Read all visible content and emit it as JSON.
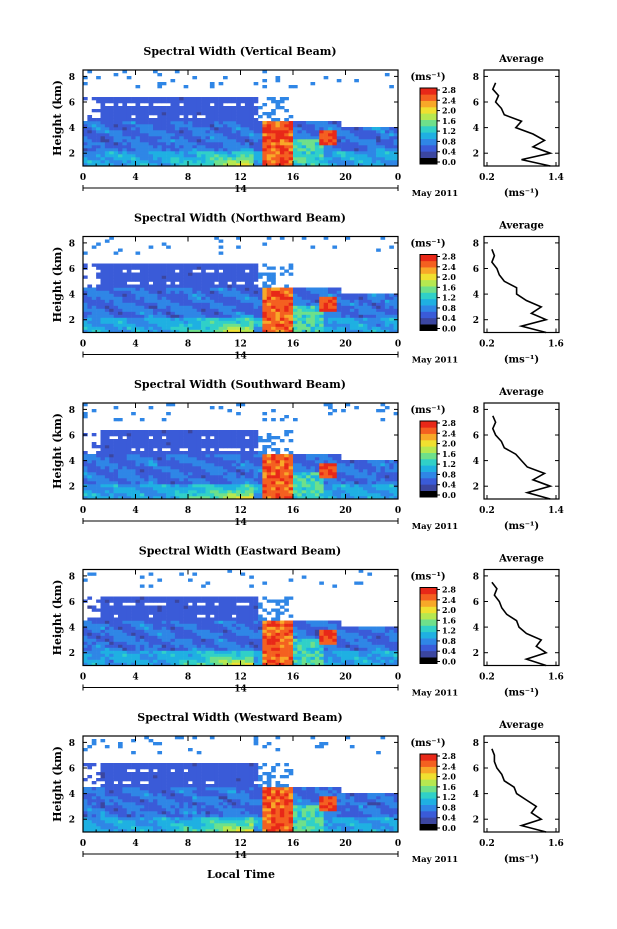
{
  "figure": {
    "xlabel": "Local Time",
    "date_label": "May 2011",
    "day_label": "14",
    "colorbar_unit": "(ms⁻¹)",
    "avg_title": "Average",
    "avg_unit": "(ms⁻¹)",
    "ylabel": "Height (km)"
  },
  "colors": {
    "scale": [
      "#000000",
      "#3b46a0",
      "#3a5bd8",
      "#2f86e6",
      "#1fb0e2",
      "#30d0c8",
      "#6ee08a",
      "#b6e850",
      "#f0e030",
      "#f8a828",
      "#f46020",
      "#e82818"
    ]
  },
  "chart_data": [
    {
      "type": "heatmap",
      "title": "Spectral Width (Vertical Beam)",
      "x_ticks": [
        "0",
        "4",
        "8",
        "12",
        "16",
        "20",
        "0"
      ],
      "y_ticks": [
        "2",
        "4",
        "6",
        "8"
      ],
      "colorbar_ticks": [
        "0.0",
        "0.4",
        "0.8",
        "1.2",
        "1.6",
        "2.0",
        "2.4",
        "2.8"
      ],
      "avg": {
        "x_ticks": [
          "0.2",
          "1.4"
        ],
        "y_ticks": [
          "2",
          "4",
          "6",
          "8"
        ],
        "xlim": [
          0.2,
          1.4
        ],
        "heights": [
          1,
          1.5,
          2,
          2.5,
          3,
          3.5,
          4,
          4.5,
          5,
          5.5,
          6,
          6.5,
          7,
          7.5
        ],
        "values": [
          1.3,
          0.8,
          1.3,
          1.0,
          1.2,
          1.0,
          0.7,
          0.8,
          0.5,
          0.45,
          0.35,
          0.4,
          0.3,
          0.35
        ]
      }
    },
    {
      "type": "heatmap",
      "title": "Spectral Width (Northward Beam)",
      "x_ticks": [
        "0",
        "4",
        "8",
        "12",
        "16",
        "20",
        "0"
      ],
      "y_ticks": [
        "2",
        "4",
        "6",
        "8"
      ],
      "colorbar_ticks": [
        "0.0",
        "0.4",
        "0.8",
        "1.2",
        "1.6",
        "2.0",
        "2.4",
        "2.8"
      ],
      "avg": {
        "x_ticks": [
          "0.2",
          "1.6"
        ],
        "y_ticks": [
          "2",
          "4",
          "6",
          "8"
        ],
        "xlim": [
          0.2,
          1.6
        ],
        "heights": [
          1,
          1.5,
          2,
          2.5,
          3,
          3.5,
          4,
          4.5,
          5,
          5.5,
          6,
          6.5,
          7,
          7.5
        ],
        "values": [
          1.4,
          0.9,
          1.4,
          1.1,
          1.3,
          1.0,
          0.8,
          0.8,
          0.55,
          0.45,
          0.4,
          0.3,
          0.35,
          0.3
        ]
      }
    },
    {
      "type": "heatmap",
      "title": "Spectral Width (Southward Beam)",
      "x_ticks": [
        "0",
        "4",
        "8",
        "12",
        "16",
        "20",
        "0"
      ],
      "y_ticks": [
        "2",
        "4",
        "6",
        "8"
      ],
      "colorbar_ticks": [
        "0.0",
        "0.4",
        "0.8",
        "1.2",
        "1.6",
        "2.0",
        "2.4",
        "2.8"
      ],
      "avg": {
        "x_ticks": [
          "0.2",
          "1.4"
        ],
        "y_ticks": [
          "2",
          "4",
          "6",
          "8"
        ],
        "xlim": [
          0.2,
          1.4
        ],
        "heights": [
          1,
          1.5,
          2,
          2.5,
          3,
          3.5,
          4,
          4.5,
          5,
          5.5,
          6,
          6.5,
          7,
          7.5
        ],
        "values": [
          1.3,
          0.9,
          1.3,
          1.0,
          1.2,
          0.9,
          0.8,
          0.7,
          0.5,
          0.45,
          0.35,
          0.3,
          0.35,
          0.3
        ]
      }
    },
    {
      "type": "heatmap",
      "title": "Spectral Width (Eastward Beam)",
      "x_ticks": [
        "0",
        "4",
        "8",
        "12",
        "16",
        "20",
        "0"
      ],
      "y_ticks": [
        "2",
        "4",
        "6",
        "8"
      ],
      "colorbar_ticks": [
        "0.0",
        "0.4",
        "0.8",
        "1.2",
        "1.6",
        "2.0",
        "2.4",
        "2.8"
      ],
      "avg": {
        "x_ticks": [
          "0.2",
          "1.6"
        ],
        "y_ticks": [
          "2",
          "4",
          "6",
          "8"
        ],
        "xlim": [
          0.2,
          1.6
        ],
        "heights": [
          1,
          1.5,
          2,
          2.5,
          3,
          3.5,
          4,
          4.5,
          5,
          5.5,
          6,
          6.5,
          7,
          7.5
        ],
        "values": [
          1.4,
          1.0,
          1.4,
          1.2,
          1.3,
          1.0,
          0.85,
          0.8,
          0.6,
          0.5,
          0.45,
          0.35,
          0.4,
          0.3
        ]
      }
    },
    {
      "type": "heatmap",
      "title": "Spectral Width (Westward Beam)",
      "x_ticks": [
        "0",
        "4",
        "8",
        "12",
        "16",
        "20",
        "0"
      ],
      "y_ticks": [
        "2",
        "4",
        "6",
        "8"
      ],
      "colorbar_ticks": [
        "0.0",
        "0.4",
        "0.8",
        "1.2",
        "1.6",
        "2.0",
        "2.4",
        "2.8"
      ],
      "avg": {
        "x_ticks": [
          "0.2",
          "1.6"
        ],
        "y_ticks": [
          "2",
          "4",
          "6",
          "8"
        ],
        "xlim": [
          0.2,
          1.6
        ],
        "heights": [
          1,
          1.5,
          2,
          2.5,
          3,
          3.5,
          4,
          4.5,
          5,
          5.5,
          6,
          6.5,
          7,
          7.5
        ],
        "values": [
          1.4,
          0.9,
          1.3,
          1.1,
          1.2,
          1.0,
          0.8,
          0.75,
          0.55,
          0.5,
          0.4,
          0.35,
          0.35,
          0.3
        ]
      }
    }
  ]
}
